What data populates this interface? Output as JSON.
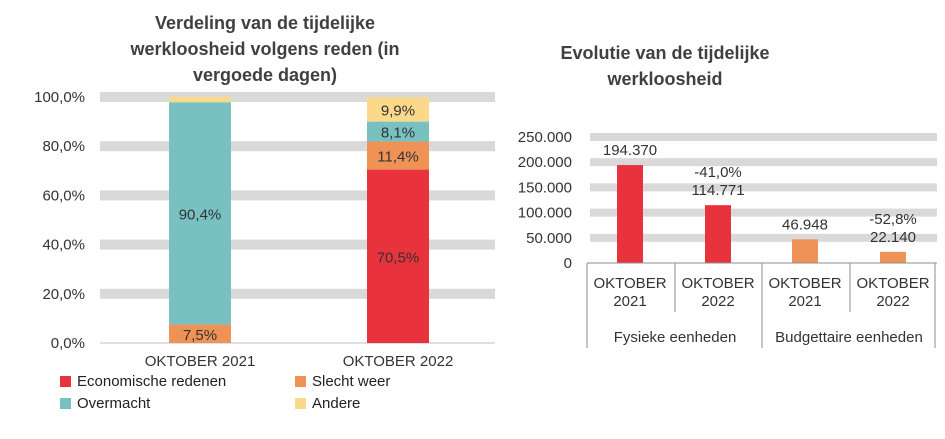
{
  "chart_data": [
    {
      "type": "bar",
      "stacked": true,
      "title": "Verdeling van de tijdelijke werkloosheid volgens reden (in vergoede dagen)",
      "title_lines": [
        "Verdeling van de tijdelijke",
        "werkloosheid volgens reden (in",
        "vergoede dagen)"
      ],
      "categories": [
        "OKTOBER 2021",
        "OKTOBER 2022"
      ],
      "ylim": [
        0,
        100
      ],
      "yticks": [
        "0,0%",
        "20,0%",
        "40,0%",
        "60,0%",
        "80,0%",
        "100,0%"
      ],
      "grid": true,
      "legend_position": "bottom",
      "series": [
        {
          "name": "Economische redenen",
          "color": "#e8323c",
          "values": [
            0,
            70.5
          ],
          "labels": [
            "",
            "70,5%"
          ]
        },
        {
          "name": "Slecht weer",
          "color": "#ee9355",
          "values": [
            7.5,
            11.4
          ],
          "labels": [
            "7,5%",
            "11,4%"
          ]
        },
        {
          "name": "Overmacht",
          "color": "#79c1c1",
          "values": [
            90.4,
            8.1
          ],
          "labels": [
            "90,4%",
            "8,1%"
          ]
        },
        {
          "name": "Andere",
          "color": "#fbd98a",
          "values": [
            2.1,
            9.9
          ],
          "labels": [
            "",
            "9,9%"
          ]
        }
      ]
    },
    {
      "type": "bar",
      "title": "Evolutie van de tijdelijke werkloosheid",
      "title_lines": [
        "Evolutie van de tijdelijke",
        "werkloosheid"
      ],
      "categories": [
        "OKTOBER 2021",
        "OKTOBER 2022",
        "OKTOBER 2021",
        "OKTOBER 2022"
      ],
      "category_lines": [
        [
          "OKTOBER",
          "2021"
        ],
        [
          "OKTOBER",
          "2022"
        ],
        [
          "OKTOBER",
          "2021"
        ],
        [
          "OKTOBER",
          "2022"
        ]
      ],
      "groups": [
        "Fysieke eenheden",
        "Budgettaire eenheden"
      ],
      "values": [
        194370,
        114771,
        46948,
        22140
      ],
      "value_labels": [
        "194.370",
        "114.771",
        "46.948",
        "22.140"
      ],
      "change_labels": [
        "",
        "-41,0%",
        "",
        "-52,8%"
      ],
      "colors": [
        "#e8323c",
        "#e8323c",
        "#ee9355",
        "#ee9355"
      ],
      "ylim": [
        0,
        250000
      ],
      "yticks": [
        "0",
        "50.000",
        "100.000",
        "150.000",
        "200.000",
        "250.000"
      ],
      "grid": true
    }
  ]
}
